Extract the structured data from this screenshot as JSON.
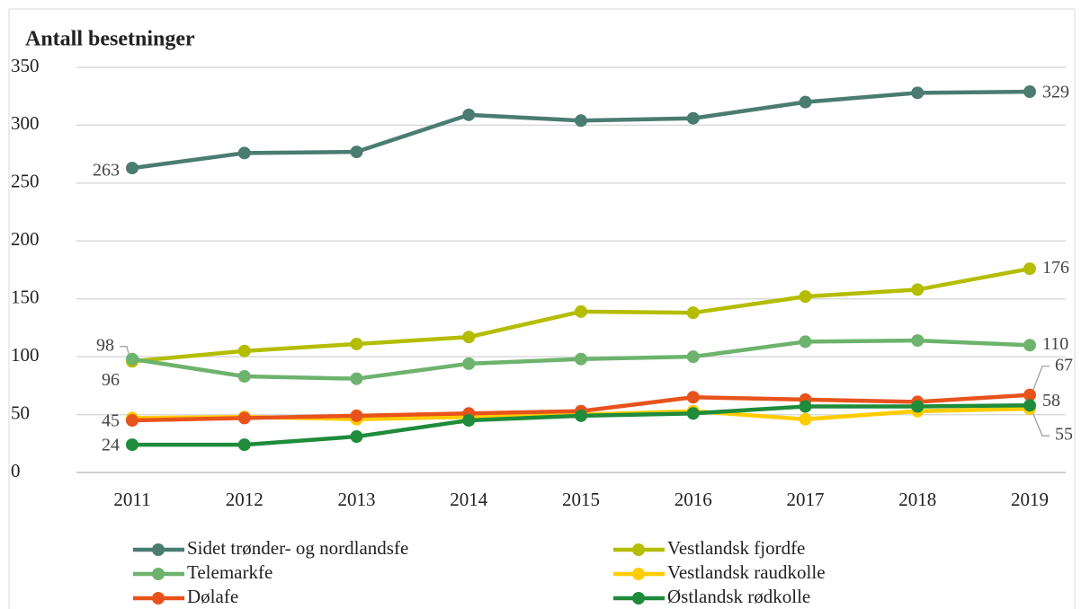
{
  "chart_data": {
    "type": "line",
    "title": "Antall besetninger",
    "categories": [
      "2011",
      "2012",
      "2013",
      "2014",
      "2015",
      "2016",
      "2017",
      "2018",
      "2019"
    ],
    "ylim": [
      0,
      350
    ],
    "yticks": [
      0,
      50,
      100,
      150,
      200,
      250,
      300,
      350
    ],
    "grid": true,
    "series": [
      {
        "name": "Sidet trønder- og nordlandsfe",
        "color": "#4a7c72",
        "values": [
          263,
          276,
          277,
          309,
          304,
          306,
          320,
          328,
          329
        ],
        "value_labels": [
          "263",
          null,
          null,
          null,
          null,
          null,
          null,
          null,
          "329"
        ]
      },
      {
        "name": "Vestlandsk fjordfe",
        "color": "#b5bd00",
        "values": [
          96,
          105,
          111,
          117,
          139,
          138,
          152,
          158,
          176
        ],
        "value_labels": [
          "96",
          null,
          null,
          null,
          null,
          null,
          null,
          null,
          "176"
        ]
      },
      {
        "name": "Telemarkfe",
        "color": "#6db36d",
        "values": [
          98,
          83,
          81,
          94,
          98,
          100,
          113,
          114,
          110
        ],
        "value_labels": [
          "98",
          null,
          null,
          null,
          null,
          null,
          null,
          null,
          "110"
        ]
      },
      {
        "name": "Vestlandsk raudkolle",
        "color": "#ffcc00",
        "values": [
          47,
          48,
          46,
          48,
          50,
          53,
          46,
          53,
          55
        ],
        "value_labels": [
          null,
          null,
          null,
          null,
          null,
          null,
          null,
          null,
          "55"
        ]
      },
      {
        "name": "Dølafe",
        "color": "#e8531c",
        "values": [
          45,
          47,
          49,
          51,
          53,
          65,
          63,
          61,
          67
        ],
        "value_labels": [
          "45",
          null,
          null,
          null,
          null,
          null,
          null,
          null,
          "67"
        ]
      },
      {
        "name": "Østlandsk rødkolle",
        "color": "#1e8c3a",
        "values": [
          24,
          24,
          31,
          45,
          49,
          51,
          57,
          57,
          58
        ],
        "value_labels": [
          "24",
          null,
          null,
          null,
          null,
          null,
          null,
          null,
          "58"
        ]
      }
    ]
  }
}
